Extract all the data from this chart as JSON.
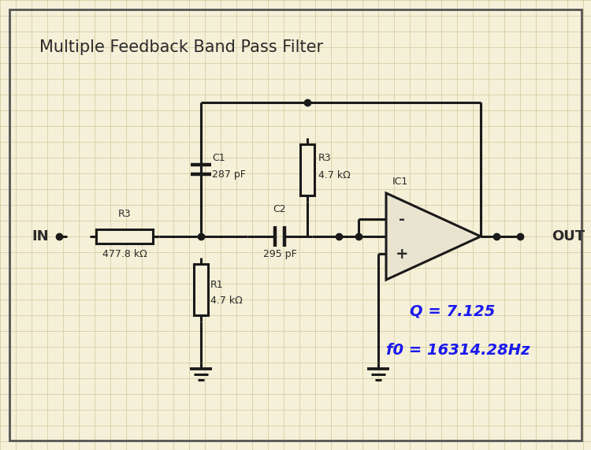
{
  "title": "Multiple Feedback Band Pass Filter",
  "bg_color": "#f5f0d8",
  "grid_color": "#d0c898",
  "line_color": "#1a1a1a",
  "border_color": "#555555",
  "component_bg": "#f5f0d8",
  "text_color": "#2a2a2a",
  "blue_text": "#1a1aee",
  "opamp_bg": "#e8e4d0",
  "labels": {
    "IN": "IN",
    "OUT": "OUT",
    "R3_top_name": "R3",
    "R3_top_val": "4.7 kΩ",
    "R3_left_name": "R3",
    "R3_left_val": "477.8 kΩ",
    "R1_name": "R1",
    "R1_val": "4.7 kΩ",
    "C1_name": "C1",
    "C1_val": "287 pF",
    "C2_name": "C2",
    "C2_val": "295 pF",
    "IC1": "IC1",
    "minus": "-",
    "plus": "+",
    "Q": "Q = 7.125",
    "f0": "f0 = 16314.28Hz"
  },
  "figsize": [
    7.5,
    5.71
  ],
  "dpi": 100
}
